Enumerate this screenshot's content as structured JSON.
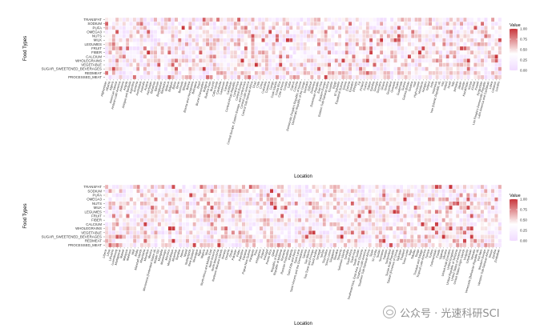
{
  "watermark": {
    "text": "公众号 · 光速科研SCI",
    "icon": "wechat-icon"
  },
  "chart_data": [
    {
      "type": "heatmap",
      "xlabel": "Location",
      "ylabel": "Food Types",
      "legend": {
        "title": "Value",
        "ticks": [
          1.0,
          0.75,
          0.5,
          0.25,
          0.0
        ],
        "tick_labels": [
          "1.00",
          "0.75",
          "0.50",
          "0.25",
          "0.00"
        ],
        "placement": "right",
        "low_color": "#f1dbff",
        "mid_color": "#ffffff",
        "high_color": "#c8353b"
      },
      "rows": [
        "TRANSFAT",
        "SODIUM",
        "PUFA",
        "OMEGA3",
        "NUTS",
        "MILK",
        "LEGUMES",
        "FRUIT",
        "FIBER",
        "CALCIUM",
        "WHOLEGRAINS",
        "VEGETABLE",
        "SUGAR_SWEETENED_BEVERAGES",
        "REDMEAT",
        "PROCESSED_MEAT"
      ],
      "columns": [
        "Afghanistan",
        "Albania",
        "Algeria",
        "American Samoa",
        "Andean Latin America",
        "Andorra",
        "Angola",
        "Antigua and Barbuda",
        "Argentina",
        "Armenia",
        "Australasia",
        "Australia",
        "Austria",
        "Azerbaijan",
        "Bahamas",
        "Bahrain",
        "Bangladesh",
        "Barbados",
        "Belarus",
        "Belgium",
        "Belize",
        "Benin",
        "Bermuda",
        "Bhutan",
        "Bolivia",
        "Bosnia and Herzegovina",
        "Botswana",
        "Brazil",
        "Brunei Darussalam",
        "Bulgaria",
        "Burkina Faso",
        "Burundi",
        "Cabo Verde",
        "Cambodia",
        "Cameroon",
        "Canada",
        "Caribbean",
        "Central African Republic",
        "Central Asia",
        "Central Europe",
        "Central Europe, Eastern Europe, and Central Asia",
        "Central Latin America",
        "Central Sub-Saharan Africa",
        "Chad",
        "Chile",
        "China",
        "Colombia",
        "Comoros",
        "Congo",
        "Cook Islands",
        "Costa Rica",
        "Cote d'Ivoire",
        "Croatia",
        "Cuba",
        "Cyprus",
        "Czechia",
        "Democratic People's Republic of Korea",
        "Democratic Republic of the Congo",
        "Denmark",
        "Djibouti",
        "Dominica",
        "Dominican Republic",
        "East Asia",
        "Eastern Europe",
        "Eastern Sub-Saharan Africa",
        "Ecuador",
        "Egypt",
        "El Salvador",
        "Equatorial Guinea",
        "Eritrea",
        "Estonia",
        "Eswatini",
        "Ethiopia",
        "Fiji",
        "Finland",
        "France",
        "Gabon",
        "Gambia",
        "Georgia",
        "Germany",
        "Ghana",
        "Greece",
        "Greenland",
        "Grenada",
        "Guam",
        "Guatemala",
        "Guinea",
        "Guinea-Bissau",
        "Guyana",
        "Haiti",
        "High-income",
        "Honduras",
        "Hungary",
        "Iceland",
        "India",
        "Indonesia",
        "Iran (Islamic Republic of)",
        "Iraq",
        "Ireland",
        "Israel",
        "Italy",
        "Jamaica",
        "Japan",
        "Jordan",
        "Kazakhstan",
        "Kenya",
        "Kiribati",
        "Kuwait",
        "Kyrgyzstan",
        "Lao People's Democratic Republic",
        "Latin America and Caribbean",
        "Latvia",
        "Lebanon",
        "Lesotho"
      ],
      "column_label_step": 1,
      "values": [],
      "seed": 11
    },
    {
      "type": "heatmap",
      "xlabel": "Location",
      "ylabel": "Food Types",
      "legend": {
        "title": "Value",
        "ticks": [
          1.0,
          0.75,
          0.5,
          0.25,
          0.0
        ],
        "tick_labels": [
          "1.00",
          "0.75",
          "0.50",
          "0.25",
          "0.00"
        ],
        "placement": "right",
        "low_color": "#f1dbff",
        "mid_color": "#ffffff",
        "high_color": "#c8353b"
      },
      "rows": [
        "TRANSFAT",
        "SODIUM",
        "PUFA",
        "OMEGA3",
        "NUTS",
        "MILK",
        "LEGUMES",
        "FRUIT",
        "FIBER",
        "CALCIUM",
        "WHOLEGRAINS",
        "VEGETABLE",
        "SUGAR_SWEETENED_BEVERAGES",
        "REDMEAT",
        "PROCESSED_MEAT"
      ],
      "columns": [
        "Liberia",
        "Libya",
        "Lithuania",
        "Luxembourg",
        "Madagascar",
        "Malawi",
        "Malaysia",
        "Maldives",
        "Mali",
        "Malta",
        "Marshall Islands",
        "Mauritania",
        "Mauritius",
        "Mexico",
        "Micronesia (Federated States of)",
        "Middle SDI",
        "Mongolia",
        "Montenegro",
        "Morocco",
        "Mozambique",
        "Myanmar",
        "Namibia",
        "Nauru",
        "Nepal",
        "Netherlands",
        "New Zealand",
        "Nicaragua",
        "Niger",
        "Nigeria",
        "Niue",
        "North Africa and Middle East",
        "North America",
        "North Macedonia",
        "Northern Mariana Islands",
        "Norway",
        "Oceania",
        "Oman",
        "Pakistan",
        "Palau",
        "Palestine",
        "Panama",
        "Papua New Guinea",
        "Paraguay",
        "Peru",
        "Philippines",
        "Poland",
        "Portugal",
        "Puerto Rico",
        "Qatar",
        "Republic of Korea",
        "Republic of Moldova",
        "Romania",
        "Russian Federation",
        "Rwanda",
        "Saint Kitts and Nevis",
        "Saint Lucia",
        "Saint Vincent and the Grenadines",
        "Samoa",
        "San Marino",
        "Sao Tome and Principe",
        "Saudi Arabia",
        "Senegal",
        "Serbia",
        "Seychelles",
        "Sierra Leone",
        "Singapore",
        "Slovakia",
        "Slovenia",
        "Solomon Islands",
        "Somalia",
        "South Africa",
        "South Asia",
        "South Sudan",
        "Southeast Asia, East Asia, and Oceania",
        "Southern Latin America",
        "Southern Sub-Saharan Africa",
        "Spain",
        "Sri Lanka",
        "Sudan",
        "Suriname",
        "Sweden",
        "Switzerland",
        "Syrian Arab Republic",
        "Taiwan (Province of China)",
        "Tajikistan",
        "Thailand",
        "Timor-Leste",
        "Togo",
        "Tokelau",
        "Tonga",
        "Trinidad and Tobago",
        "Tropical Latin America",
        "Tunisia",
        "Turkey",
        "Turkmenistan",
        "Tuvalu",
        "Uganda",
        "Ukraine",
        "United Arab Emirates",
        "United Kingdom",
        "United Republic of Tanzania",
        "United States of America",
        "United States Virgin Islands",
        "Uruguay",
        "Uzbekistan",
        "Vanuatu",
        "Venezuela (Bolivarian Republic of)",
        "Viet Nam",
        "Western Europe",
        "Western Sub-Saharan Africa",
        "Yemen",
        "Zambia",
        "Zimbabwe"
      ],
      "column_label_step": 1,
      "values": [],
      "seed": 29
    }
  ]
}
